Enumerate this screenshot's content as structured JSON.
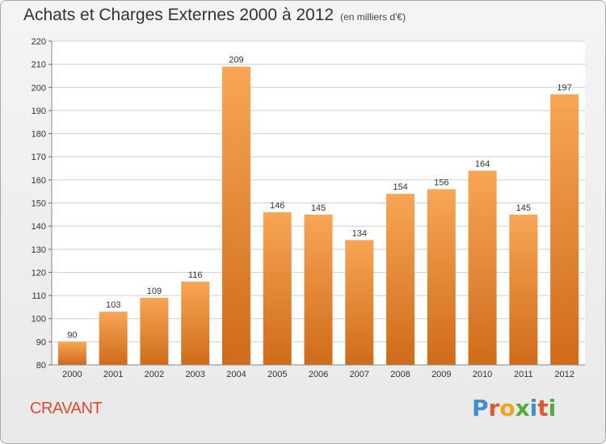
{
  "title": "Achats et Charges Externes 2000 à 2012",
  "subtitle": "(en milliers d'€)",
  "commune": "CRAVANT",
  "logo": {
    "text": "Proxiti",
    "letters": [
      "P",
      "r",
      "o",
      "x",
      "i",
      "t",
      "i"
    ],
    "colors": [
      "#3a8fd6",
      "#e4572e",
      "#f2a31a",
      "#4fae3b",
      "#3a8fd6",
      "#e4572e",
      "#4fae3b"
    ]
  },
  "chart_data": {
    "type": "bar",
    "title": "Achats et Charges Externes 2000 à 2012",
    "subtitle": "(en milliers d'€)",
    "categories": [
      "2000",
      "2001",
      "2002",
      "2003",
      "2004",
      "2005",
      "2006",
      "2007",
      "2008",
      "2009",
      "2010",
      "2011",
      "2012"
    ],
    "values": [
      90,
      103,
      109,
      116,
      209,
      146,
      145,
      134,
      154,
      156,
      164,
      145,
      197
    ],
    "ylim": [
      80,
      220
    ],
    "yticks": [
      80,
      90,
      100,
      110,
      120,
      130,
      140,
      150,
      160,
      170,
      180,
      190,
      200,
      210,
      220
    ],
    "grid": true,
    "bar_color_top": "#f7a655",
    "bar_color_bottom": "#cf6b1a"
  }
}
